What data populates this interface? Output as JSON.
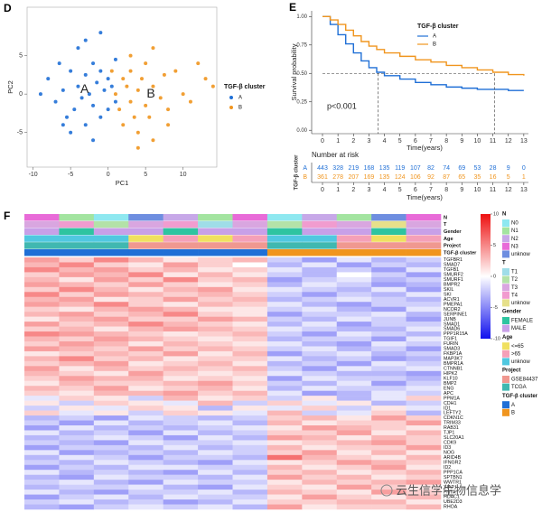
{
  "chart_data": [
    {
      "type": "scatter",
      "panel": "D",
      "xlabel": "PC1",
      "ylabel": "PC2",
      "legend_title": "TGF-β cluster",
      "xlim": [
        -10.8,
        14.5
      ],
      "ylim": [
        -9.5,
        11.3
      ],
      "xticks": [
        -10,
        -5,
        0,
        5,
        10
      ],
      "yticks": [
        -5,
        0,
        5
      ],
      "series": [
        {
          "name": "A",
          "color": "#1f6fd6",
          "x": [
            -8,
            -7,
            -6.5,
            -6,
            -5.5,
            -5,
            -4.5,
            -4,
            -4,
            -3.5,
            -3,
            -3,
            -2.5,
            -2,
            -2,
            -1.5,
            -1,
            -1,
            -0.5,
            0,
            0,
            0.5,
            1,
            1,
            -9,
            -3,
            -5,
            -2,
            -6,
            -1
          ],
          "values": [
            2,
            -1,
            4,
            0.5,
            -3,
            3,
            -2,
            1,
            6,
            -0.5,
            2.5,
            -4,
            0,
            4,
            -1.5,
            1.5,
            -3,
            3,
            0.5,
            -2,
            2,
            1,
            -1,
            4.5,
            0,
            7,
            -5,
            -6,
            -4,
            8
          ]
        },
        {
          "name": "B",
          "color": "#f0951e",
          "x": [
            1,
            1.5,
            2,
            2,
            2.5,
            3,
            3,
            3.5,
            4,
            4,
            4.5,
            5,
            5,
            5.5,
            6,
            6,
            7,
            7.5,
            8,
            9,
            10,
            11,
            12,
            13,
            14,
            0.5,
            3,
            4,
            6,
            8
          ],
          "values": [
            0,
            -2,
            2,
            -4,
            1,
            -1,
            3,
            -3,
            0.5,
            -5,
            2,
            -1.5,
            4,
            -3,
            1,
            -6,
            -0.5,
            2.5,
            -2,
            3,
            0,
            -1,
            4,
            2,
            1,
            3,
            5,
            -7,
            6,
            -4
          ]
        }
      ]
    },
    {
      "type": "survival",
      "panel": "E",
      "xlabel": "Time(years)",
      "ylabel": "Survival probability",
      "legend_title": "TGF-β cluster",
      "pvalue": "p<0.001",
      "risk_title": "Number at risk",
      "risk_ylabel": "TGF-β cluster",
      "median_level": 0.5,
      "xlim": [
        -0.7,
        13.3
      ],
      "ylim": [
        -0.03,
        1.05
      ],
      "xticks": [
        0,
        1,
        2,
        3,
        4,
        5,
        6,
        7,
        8,
        9,
        10,
        11,
        12,
        13
      ],
      "yticks": [
        {
          "value": 0,
          "label": "0.00"
        },
        0.25,
        {
          "value": 0.5,
          "label": "0.50"
        },
        0.75,
        {
          "value": 1,
          "label": "1.00"
        }
      ],
      "series": [
        {
          "name": "A",
          "color": "#1f6fd6",
          "median": 3.6,
          "x": [
            0,
            0.5,
            1,
            1.5,
            2,
            2.5,
            3,
            3.5,
            4,
            5,
            6,
            7,
            8,
            9,
            10,
            11,
            12,
            13
          ],
          "values": [
            1,
            0.93,
            0.84,
            0.76,
            0.68,
            0.61,
            0.55,
            0.51,
            0.48,
            0.45,
            0.42,
            0.4,
            0.38,
            0.37,
            0.36,
            0.36,
            0.35,
            0.35
          ],
          "at_risk": [
            443,
            328,
            219,
            168,
            135,
            119,
            107,
            82,
            74,
            69,
            53,
            28,
            9,
            0
          ]
        },
        {
          "name": "B",
          "color": "#f0951e",
          "median": 11.1,
          "x": [
            0,
            0.5,
            1,
            1.5,
            2,
            2.5,
            3,
            3.5,
            4,
            5,
            6,
            7,
            8,
            9,
            10,
            11,
            12,
            13
          ],
          "values": [
            1,
            0.97,
            0.93,
            0.88,
            0.83,
            0.78,
            0.74,
            0.71,
            0.68,
            0.65,
            0.62,
            0.6,
            0.57,
            0.55,
            0.53,
            0.51,
            0.49,
            0.48
          ],
          "at_risk": [
            361,
            278,
            207,
            169,
            135,
            124,
            106,
            92,
            87,
            65,
            35,
            16,
            5,
            1
          ]
        }
      ]
    },
    {
      "type": "heatmap",
      "panel": "F",
      "watermark": "云生信学生物信息学",
      "clim": [
        -10,
        10
      ],
      "colorscale": [
        "#1010ee",
        "#ffffff",
        "#ee1010"
      ],
      "colorbar_ticks": [
        10,
        5,
        0,
        -5,
        -10
      ],
      "tracks": [
        {
          "name": "N",
          "levels": [
            "N0",
            "N1",
            "N2",
            "N3",
            "unknow"
          ],
          "colors": [
            "#8ee8f0",
            "#a3e4a0",
            "#c7a8e8",
            "#e86bd8",
            "#6e8ee0"
          ],
          "values": [
            "N3",
            "N1",
            "N0",
            "unknow",
            "N2",
            "N1",
            "N3",
            "N0",
            "N2",
            "N1",
            "unknow",
            "N3"
          ]
        },
        {
          "name": "T",
          "levels": [
            "T1",
            "T2",
            "T3",
            "T4",
            "unknow"
          ],
          "colors": [
            "#9fdde8",
            "#b3e2a8",
            "#d9a6e0",
            "#f19ccf",
            "#e6e08a"
          ],
          "values": [
            "T3",
            "T4",
            "T2",
            "T3",
            "T4",
            "T1",
            "T3",
            "T2",
            "T4",
            "T3",
            "unknow",
            "T3"
          ]
        },
        {
          "name": "Gender",
          "levels": [
            "FEMALE",
            "MALE"
          ],
          "colors": [
            "#2ec4a0",
            "#c8a0e8"
          ],
          "values": [
            "MALE",
            "FEMALE",
            "MALE",
            "MALE",
            "FEMALE",
            "MALE",
            "MALE",
            "FEMALE",
            "MALE",
            "MALE",
            "FEMALE",
            "MALE"
          ]
        },
        {
          "name": "Age",
          "levels": [
            "<=65",
            ">65",
            "unknow"
          ],
          "colors": [
            "#f0e060",
            "#f5a0b8",
            "#50c8e0"
          ],
          "values": [
            "unknow",
            "unknow",
            "unknow",
            "<=65",
            ">65",
            "<=65",
            ">65",
            "unknow",
            "unknow",
            ">65",
            "<=65",
            ">65"
          ]
        },
        {
          "name": "Project",
          "levels": [
            "GSE84437",
            "TCGA"
          ],
          "colors": [
            "#f09890",
            "#40b8b0"
          ],
          "values": [
            "TCGA",
            "TCGA",
            "TCGA",
            "GSE84437",
            "GSE84437",
            "GSE84437",
            "GSE84437",
            "TCGA",
            "TCGA",
            "GSE84437",
            "GSE84437",
            "GSE84437"
          ]
        },
        {
          "name": "TGF-β cluster",
          "levels": [
            "A",
            "B"
          ],
          "colors": [
            "#1f6fd6",
            "#f0951e"
          ],
          "values": [
            "A",
            "A",
            "A",
            "A",
            "A",
            "A",
            "A",
            "B",
            "B",
            "B",
            "B",
            "B"
          ]
        }
      ],
      "genes": [
        "TGFBR1",
        "SMAD7",
        "TGFB1",
        "SMURF2",
        "SMURF1",
        "BMPR2",
        "SKIL",
        "SKI",
        "ACVR1",
        "PMEPA1",
        "NCOR2",
        "SERPINE1",
        "JUNB",
        "SMAD1",
        "SMAD6",
        "PPP1R15A",
        "TGIF1",
        "FURIN",
        "SMAD3",
        "FKBP1A",
        "MAP3K7",
        "BMPR1A",
        "CTNNB1",
        "HIPK2",
        "KLF10",
        "BMP2",
        "ENG",
        "APC",
        "PPM1A",
        "CDH1",
        "ID1",
        "LEFTY2",
        "CDKN1C",
        "TRIM33",
        "RAB31",
        "TJP1",
        "SLC20A1",
        "CDK9",
        "ID3",
        "NOG",
        "ARID4B",
        "IFNGR2",
        "ID2",
        "PPP1CA",
        "SPTBN1",
        "WWTR1",
        "XIAP",
        "FNTA",
        "HDAC1",
        "UBE2D3",
        "RHOA"
      ],
      "values": [
        [
          4,
          2,
          5,
          3,
          1,
          2,
          3,
          -2,
          -4,
          -1,
          -3,
          -2
        ],
        [
          3,
          5,
          2,
          1,
          4,
          2,
          0,
          -3,
          -1,
          -4,
          -2,
          -3
        ],
        [
          5,
          3,
          4,
          2,
          3,
          1,
          2,
          -1,
          -3,
          -2,
          -4,
          -1
        ],
        [
          2,
          4,
          3,
          5,
          1,
          3,
          1,
          -2,
          -3,
          0,
          -2,
          -4
        ],
        [
          3,
          1,
          4,
          2,
          5,
          2,
          3,
          -4,
          -2,
          -1,
          -3,
          -2
        ],
        [
          4,
          3,
          2,
          4,
          2,
          1,
          2,
          -3,
          -1,
          -2,
          -4,
          -3
        ],
        [
          2,
          5,
          3,
          1,
          3,
          4,
          1,
          -1,
          -2,
          -3,
          -1,
          -4
        ],
        [
          5,
          2,
          4,
          3,
          2,
          3,
          2,
          -2,
          -4,
          -2,
          -3,
          -1
        ],
        [
          3,
          4,
          1,
          2,
          4,
          2,
          3,
          -3,
          -2,
          -1,
          -2,
          -3
        ],
        [
          4,
          3,
          5,
          2,
          1,
          3,
          2,
          -1,
          -3,
          -4,
          -2,
          -2
        ],
        [
          2,
          1,
          3,
          4,
          3,
          1,
          1,
          -2,
          -1,
          -3,
          -4,
          -1
        ],
        [
          3,
          4,
          2,
          3,
          5,
          2,
          1,
          -4,
          -2,
          -2,
          -1,
          -3
        ],
        [
          1,
          3,
          4,
          2,
          2,
          4,
          3,
          -2,
          -3,
          -1,
          -2,
          -4
        ],
        [
          4,
          2,
          3,
          5,
          3,
          2,
          1,
          -3,
          -1,
          -4,
          -2,
          -2
        ],
        [
          2,
          3,
          1,
          3,
          4,
          3,
          2,
          -1,
          -2,
          -3,
          -3,
          -1
        ],
        [
          5,
          4,
          3,
          2,
          1,
          2,
          3,
          -2,
          -4,
          -1,
          -2,
          -3
        ],
        [
          3,
          2,
          4,
          3,
          2,
          1,
          2,
          -3,
          -2,
          -2,
          -4,
          -1
        ],
        [
          2,
          4,
          3,
          1,
          3,
          2,
          1,
          -1,
          -3,
          -4,
          -1,
          -2
        ],
        [
          4,
          3,
          2,
          4,
          2,
          3,
          2,
          -2,
          -1,
          -3,
          -2,
          -4
        ],
        [
          1,
          2,
          3,
          2,
          4,
          1,
          3,
          -4,
          -2,
          -1,
          -3,
          -2
        ],
        [
          3,
          5,
          2,
          3,
          1,
          2,
          2,
          -1,
          -3,
          -2,
          -4,
          -3
        ],
        [
          2,
          3,
          4,
          1,
          2,
          3,
          1,
          -3,
          -2,
          -4,
          -1,
          -2
        ],
        [
          4,
          1,
          3,
          2,
          3,
          2,
          3,
          -2,
          -4,
          -1,
          -2,
          -1
        ],
        [
          3,
          2,
          1,
          4,
          2,
          1,
          2,
          -1,
          -2,
          -3,
          -3,
          -4
        ],
        [
          2,
          4,
          3,
          3,
          1,
          2,
          1,
          -4,
          -1,
          -2,
          -2,
          -3
        ],
        [
          1,
          3,
          2,
          2,
          3,
          4,
          2,
          -2,
          -3,
          -1,
          -4,
          -2
        ],
        [
          3,
          2,
          4,
          1,
          2,
          3,
          1,
          -3,
          -1,
          -2,
          -2,
          -1
        ],
        [
          2,
          1,
          3,
          3,
          4,
          2,
          3,
          -1,
          -4,
          -3,
          -1,
          -2
        ],
        [
          -1,
          2,
          1,
          -2,
          3,
          1,
          2,
          -2,
          1,
          -3,
          -1,
          2
        ],
        [
          1,
          -2,
          2,
          1,
          -1,
          3,
          -2,
          2,
          -1,
          1,
          -3,
          -2
        ],
        [
          -2,
          1,
          -1,
          2,
          1,
          -3,
          1,
          -1,
          2,
          -2,
          1,
          -1
        ],
        [
          2,
          -1,
          1,
          -2,
          2,
          1,
          -1,
          3,
          -2,
          -1,
          2,
          -3
        ],
        [
          -3,
          -2,
          -4,
          -1,
          -2,
          -3,
          -2,
          2,
          3,
          1,
          4,
          2
        ],
        [
          -2,
          -4,
          -1,
          -3,
          -2,
          -1,
          -3,
          3,
          1,
          2,
          2,
          4
        ],
        [
          -4,
          -1,
          -3,
          -2,
          -3,
          -2,
          -1,
          1,
          4,
          3,
          2,
          1
        ],
        [
          -1,
          -3,
          -2,
          -4,
          -1,
          -3,
          -2,
          2,
          2,
          4,
          1,
          3
        ],
        [
          -3,
          -2,
          -1,
          -2,
          -4,
          -1,
          -3,
          4,
          3,
          1,
          3,
          2
        ],
        [
          -2,
          -3,
          -4,
          -1,
          -2,
          -2,
          -1,
          1,
          2,
          3,
          4,
          2
        ],
        [
          -4,
          -2,
          -2,
          -3,
          -1,
          -3,
          -2,
          3,
          1,
          2,
          2,
          4
        ],
        [
          -1,
          -4,
          -3,
          -2,
          -3,
          -1,
          -2,
          2,
          4,
          1,
          3,
          1
        ],
        [
          -3,
          -1,
          -2,
          -4,
          -2,
          -2,
          -3,
          6,
          3,
          2,
          1,
          3
        ],
        [
          -2,
          -3,
          -1,
          -2,
          -3,
          -4,
          -1,
          1,
          2,
          4,
          3,
          2
        ],
        [
          -4,
          -2,
          -3,
          -1,
          -1,
          -2,
          -2,
          3,
          1,
          2,
          4,
          1
        ],
        [
          -1,
          -3,
          -2,
          -3,
          -4,
          -1,
          -3,
          2,
          3,
          1,
          2,
          3
        ],
        [
          -3,
          -4,
          -1,
          -2,
          -2,
          -3,
          -1,
          4,
          2,
          3,
          1,
          2
        ],
        [
          -2,
          -1,
          -3,
          -4,
          -1,
          -2,
          -2,
          1,
          3,
          2,
          3,
          4
        ],
        [
          -3,
          -2,
          -2,
          -1,
          -3,
          -4,
          -1,
          2,
          1,
          4,
          2,
          1
        ],
        [
          -1,
          -3,
          -4,
          -2,
          -2,
          -1,
          -3,
          3,
          2,
          1,
          4,
          2
        ],
        [
          -4,
          -2,
          -1,
          -3,
          -1,
          -2,
          -2,
          1,
          4,
          2,
          1,
          3
        ],
        [
          -2,
          -1,
          -3,
          -2,
          -4,
          -3,
          -1,
          2,
          2,
          3,
          3,
          1
        ],
        [
          -3,
          -4,
          -2,
          -1,
          -2,
          -1,
          -3,
          4,
          1,
          2,
          2,
          3
        ]
      ]
    }
  ]
}
